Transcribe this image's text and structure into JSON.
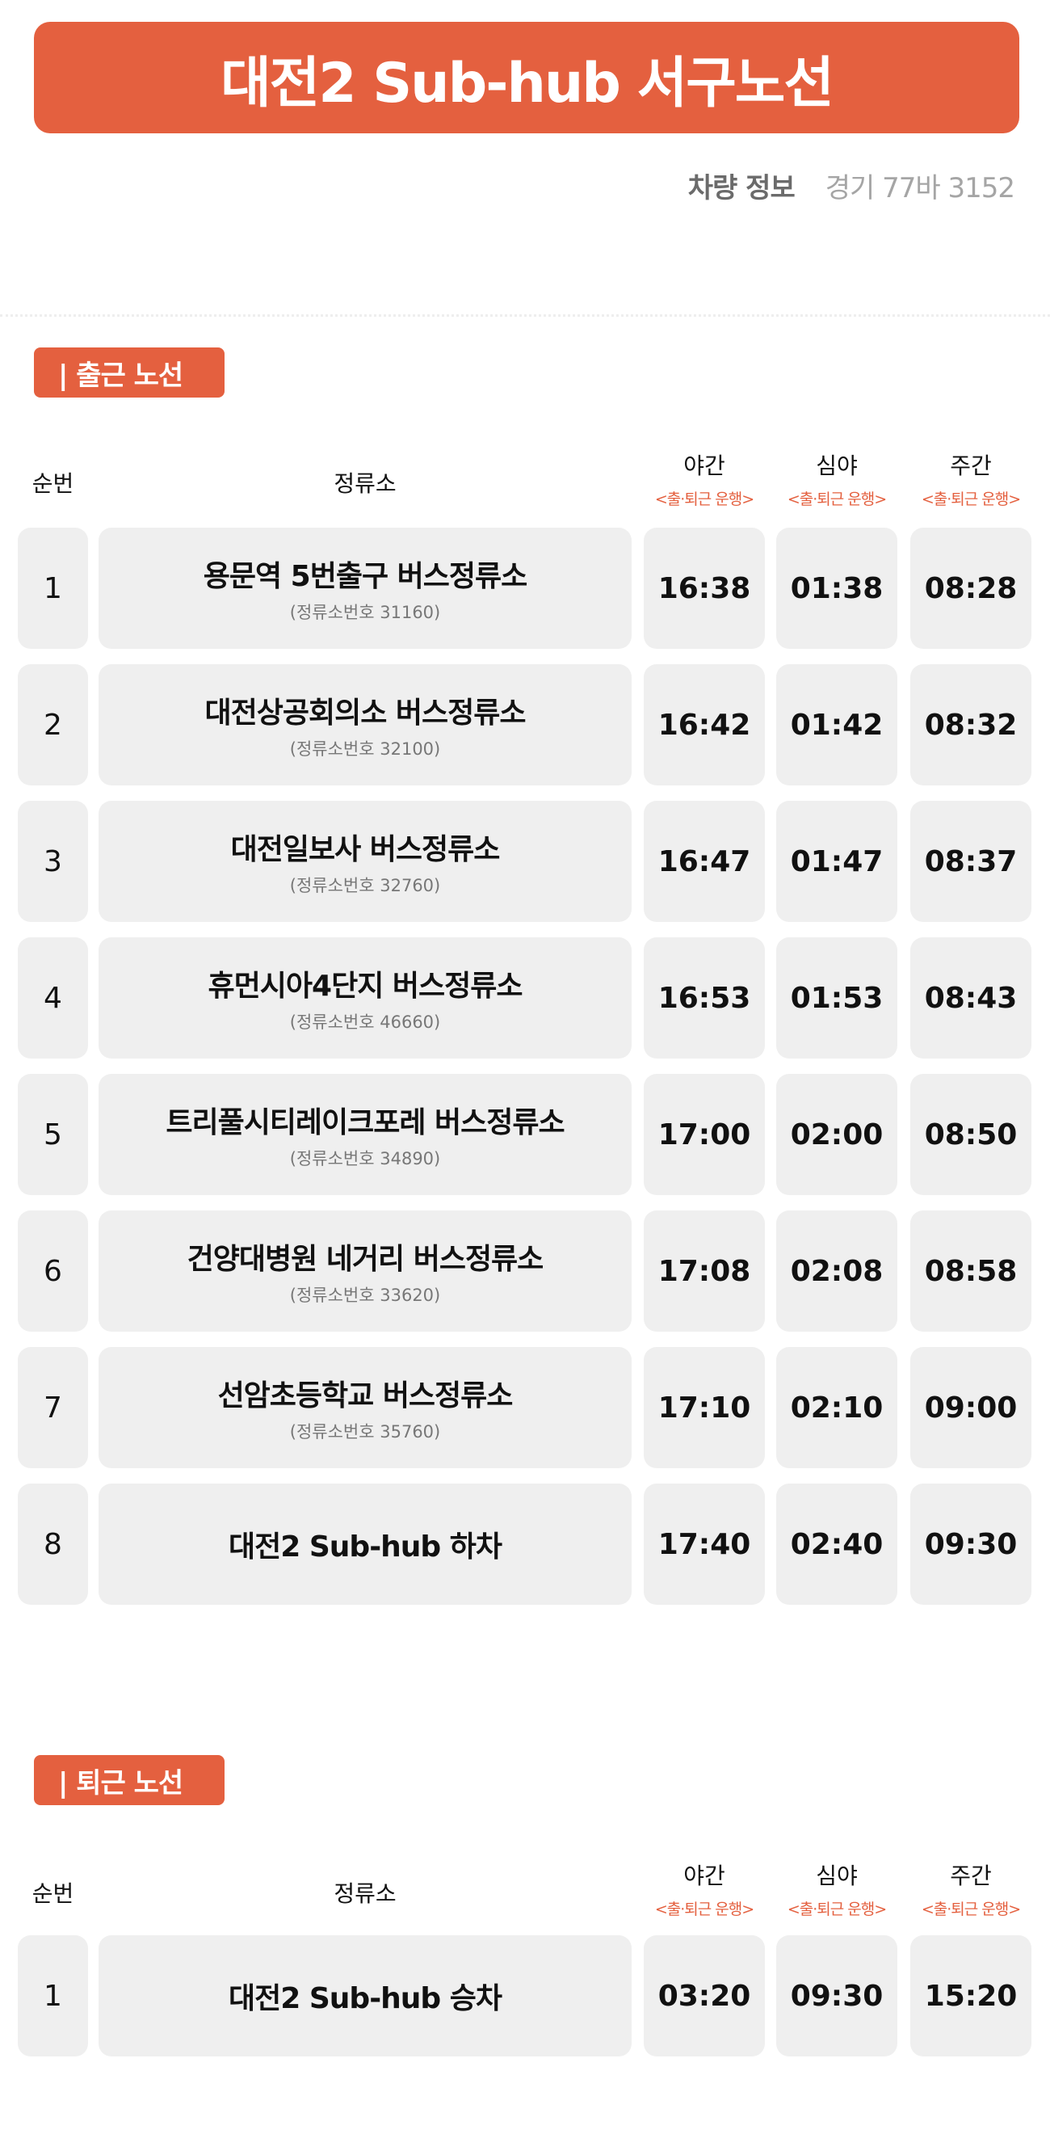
{
  "title": "대전2 Sub-hub 서구노선",
  "vehicle": {
    "label": "차량 정보",
    "value": "경기 77바 3152"
  },
  "colors": {
    "accent": "#E4603F",
    "cell_bg": "#efefef"
  },
  "columns": {
    "order": "순번",
    "stop": "정류소",
    "night": "야간",
    "late_night": "심야",
    "day": "주간",
    "shift_note": "<출·퇴근 운행>"
  },
  "sections": [
    {
      "label": "| 출근 노선",
      "rows": [
        {
          "no": "1",
          "stop": "용문역 5번출구 버스정류소",
          "code": "(정류소번호 31160)",
          "night": "16:38",
          "late_night": "01:38",
          "day": "08:28"
        },
        {
          "no": "2",
          "stop": "대전상공회의소 버스정류소",
          "code": "(정류소번호 32100)",
          "night": "16:42",
          "late_night": "01:42",
          "day": "08:32"
        },
        {
          "no": "3",
          "stop": "대전일보사 버스정류소",
          "code": "(정류소번호 32760)",
          "night": "16:47",
          "late_night": "01:47",
          "day": "08:37"
        },
        {
          "no": "4",
          "stop": "휴먼시아4단지 버스정류소",
          "code": "(정류소번호 46660)",
          "night": "16:53",
          "late_night": "01:53",
          "day": "08:43"
        },
        {
          "no": "5",
          "stop": "트리풀시티레이크포레 버스정류소",
          "code": "(정류소번호 34890)",
          "night": "17:00",
          "late_night": "02:00",
          "day": "08:50"
        },
        {
          "no": "6",
          "stop": "건양대병원 네거리 버스정류소",
          "code": "(정류소번호 33620)",
          "night": "17:08",
          "late_night": "02:08",
          "day": "08:58"
        },
        {
          "no": "7",
          "stop": "선암초등학교 버스정류소",
          "code": "(정류소번호 35760)",
          "night": "17:10",
          "late_night": "02:10",
          "day": "09:00"
        },
        {
          "no": "8",
          "stop": "대전2 Sub-hub 하차",
          "code": "",
          "night": "17:40",
          "late_night": "02:40",
          "day": "09:30"
        }
      ]
    },
    {
      "label": "| 퇴근 노선",
      "rows": [
        {
          "no": "1",
          "stop": "대전2 Sub-hub 승차",
          "code": "",
          "night": "03:20",
          "late_night": "09:30",
          "day": "15:20"
        }
      ]
    }
  ]
}
